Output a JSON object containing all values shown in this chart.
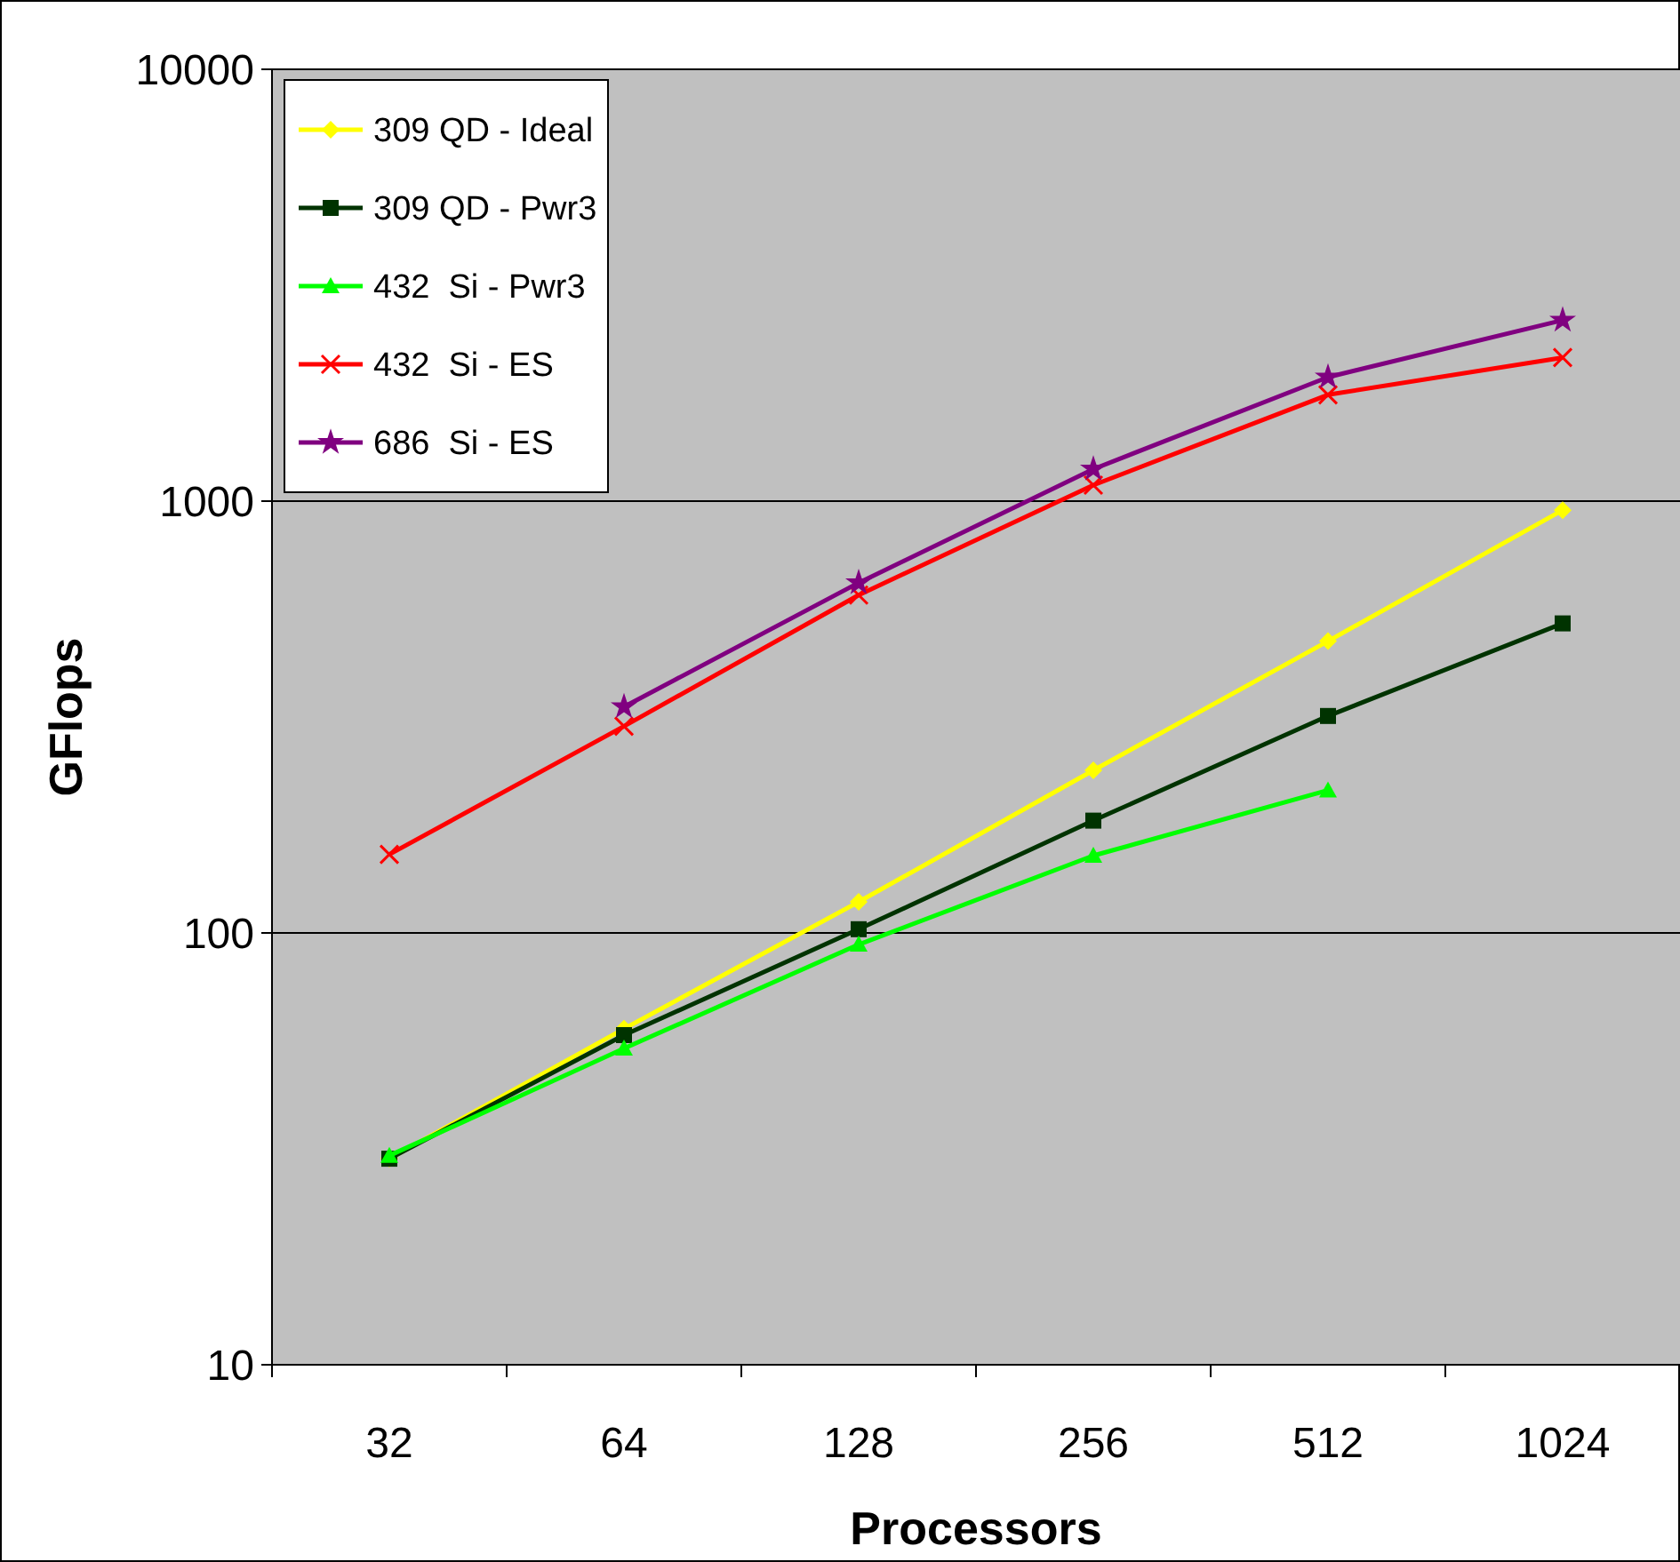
{
  "chart_data": {
    "type": "line",
    "xlabel": "Processors",
    "ylabel": "GFlops",
    "categories": [
      "32",
      "64",
      "128",
      "256",
      "512",
      "1024"
    ],
    "log": "y",
    "ylim": [
      10,
      10000
    ],
    "yticks": [
      10,
      100,
      1000,
      10000
    ],
    "grid": "y",
    "legend": "top left",
    "series": [
      {
        "name": "309 QD - Ideal",
        "color": "#ffff00",
        "marker": "diamond",
        "values": [
          30,
          60,
          118,
          238,
          474,
          953
        ]
      },
      {
        "name": "309 QD - Pwr3",
        "color": "#003300",
        "marker": "square",
        "values": [
          30,
          58,
          102,
          182,
          318,
          521
        ]
      },
      {
        "name": "432  Si - Pwr3",
        "color": "#00ff00",
        "marker": "triangle",
        "values": [
          30.5,
          54,
          94,
          151,
          214,
          null
        ]
      },
      {
        "name": "432  Si - ES",
        "color": "#ff0000",
        "marker": "cross",
        "values": [
          152,
          301,
          606,
          1089,
          1763,
          2150
        ]
      },
      {
        "name": "686  Si - ES",
        "color": "#800080",
        "marker": "star",
        "values": [
          null,
          334,
          647,
          1186,
          1937,
          2624
        ]
      }
    ]
  }
}
